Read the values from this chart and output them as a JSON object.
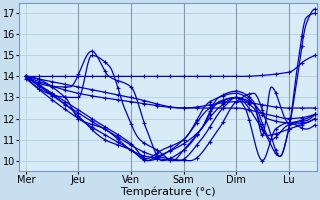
{
  "xlabel": "Température (°c)",
  "bg_color": "#c8dff0",
  "plot_bg_color": "#d8ecf8",
  "line_color": "#0000cc",
  "ylim": [
    9.5,
    17.5
  ],
  "yticks": [
    10,
    11,
    12,
    13,
    14,
    15,
    16,
    17
  ],
  "xlim": [
    -3,
    133
  ],
  "day_ticks": [
    0,
    24,
    48,
    72,
    96,
    120,
    130
  ],
  "day_labels": [
    "Mer",
    "Jeu",
    "Ven",
    "Sam",
    "Dim",
    "Lu"
  ],
  "grid_color": "#aaccdd",
  "vline_color": "#8899aa",
  "xlabel_fontsize": 8,
  "tick_fontsize": 7,
  "linewidth": 0.9,
  "marker_size": 3.5
}
